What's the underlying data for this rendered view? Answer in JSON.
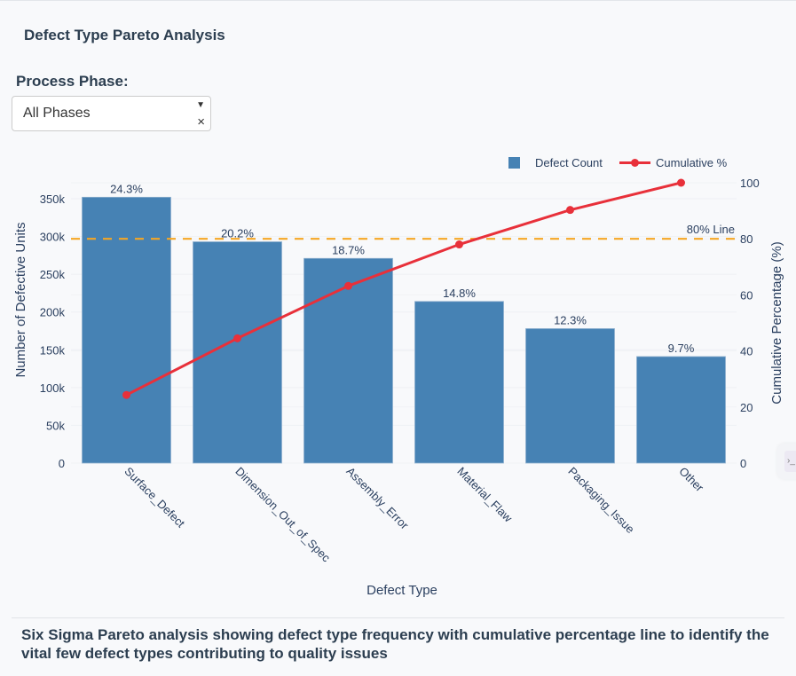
{
  "page": {
    "title": "Defect Type Pareto Analysis",
    "caption": "Six Sigma Pareto analysis showing defect type frequency with cumulative percentage line to identify the vital few defect types contributing to quality issues"
  },
  "filter": {
    "label": "Process Phase:",
    "selected": "All Phases",
    "caret_icon": "▼",
    "clear_icon": "×"
  },
  "side_tab": {
    "icon": "›_"
  },
  "chart_data": {
    "type": "bar",
    "title": "",
    "xlabel": "Defect Type",
    "ylabel": "Number of Defective Units",
    "y2label": "Cumulative Percentage (%)",
    "categories": [
      "Surface_Defect",
      "Dimension_Out_of_Spec",
      "Assembly_Error",
      "Material_Flaw",
      "Packaging_Issue",
      "Other"
    ],
    "series": [
      {
        "name": "Defect Count",
        "type": "bar",
        "axis": "left",
        "color": "#4682b4",
        "values": [
          352000,
          293000,
          271000,
          214000,
          178000,
          141000
        ],
        "labels": [
          "24.3%",
          "20.2%",
          "18.7%",
          "14.8%",
          "12.3%",
          "9.7%"
        ]
      },
      {
        "name": "Cumulative %",
        "type": "line",
        "axis": "right",
        "color": "#e8303a",
        "values": [
          24.3,
          44.5,
          63.2,
          78.0,
          90.3,
          100.0
        ]
      }
    ],
    "reference_line": {
      "label": "80% Line",
      "value": 80,
      "axis": "right",
      "color": "#f5a623",
      "style": "dashed"
    },
    "ylim": [
      0,
      370000
    ],
    "y2lim": [
      0,
      100
    ],
    "yticks": [
      0,
      50000,
      100000,
      150000,
      200000,
      250000,
      300000,
      350000
    ],
    "ytick_labels": [
      "0",
      "50k",
      "100k",
      "150k",
      "200k",
      "250k",
      "300k",
      "350k"
    ],
    "y2ticks": [
      0,
      20,
      40,
      60,
      80,
      100
    ],
    "y2tick_labels": [
      "0",
      "20",
      "40",
      "60",
      "80",
      "100"
    ],
    "legend": [
      "Defect Count",
      "Cumulative %"
    ],
    "legend_position": "top-right",
    "grid": true
  }
}
